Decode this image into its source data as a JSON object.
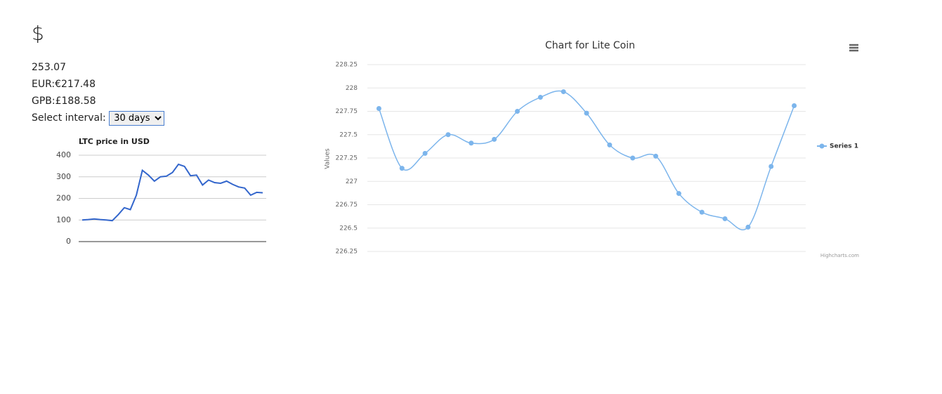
{
  "currency_symbol": "$",
  "price": 253.07,
  "eur": "EUR:€217.48",
  "gbp": "GPB:£188.58",
  "interval_label": "Select interval:",
  "interval_option": "30 days",
  "chart_data": [
    {
      "type": "line",
      "title": "LTC price in USD",
      "color": "#3366cc",
      "values": [
        100,
        102,
        105,
        102,
        100,
        97,
        125,
        157,
        148,
        215,
        330,
        308,
        280,
        300,
        303,
        320,
        358,
        348,
        305,
        308,
        262,
        285,
        273,
        270,
        280,
        265,
        253,
        248,
        215,
        228,
        226
      ],
      "ylim": [
        0,
        400
      ],
      "yticks": [
        0,
        100,
        200,
        300,
        400
      ],
      "grid": true
    },
    {
      "type": "spline",
      "title": "Chart for Lite Coin",
      "y_label": "Values",
      "series": [
        {
          "name": "Series 1",
          "color": "#7cb5ec",
          "values": [
            227.78,
            227.14,
            227.3,
            227.5,
            227.41,
            227.45,
            227.75,
            227.9,
            227.96,
            227.73,
            227.39,
            227.25,
            227.27,
            226.87,
            226.67,
            226.6,
            226.51,
            227.16,
            227.81
          ]
        }
      ],
      "ylim": [
        226.25,
        228.25
      ],
      "yticks": [
        226.25,
        226.5,
        226.75,
        227,
        227.25,
        227.5,
        227.75,
        228,
        228.25
      ],
      "grid": true,
      "legend": "right",
      "credits": "Highcharts.com"
    }
  ]
}
